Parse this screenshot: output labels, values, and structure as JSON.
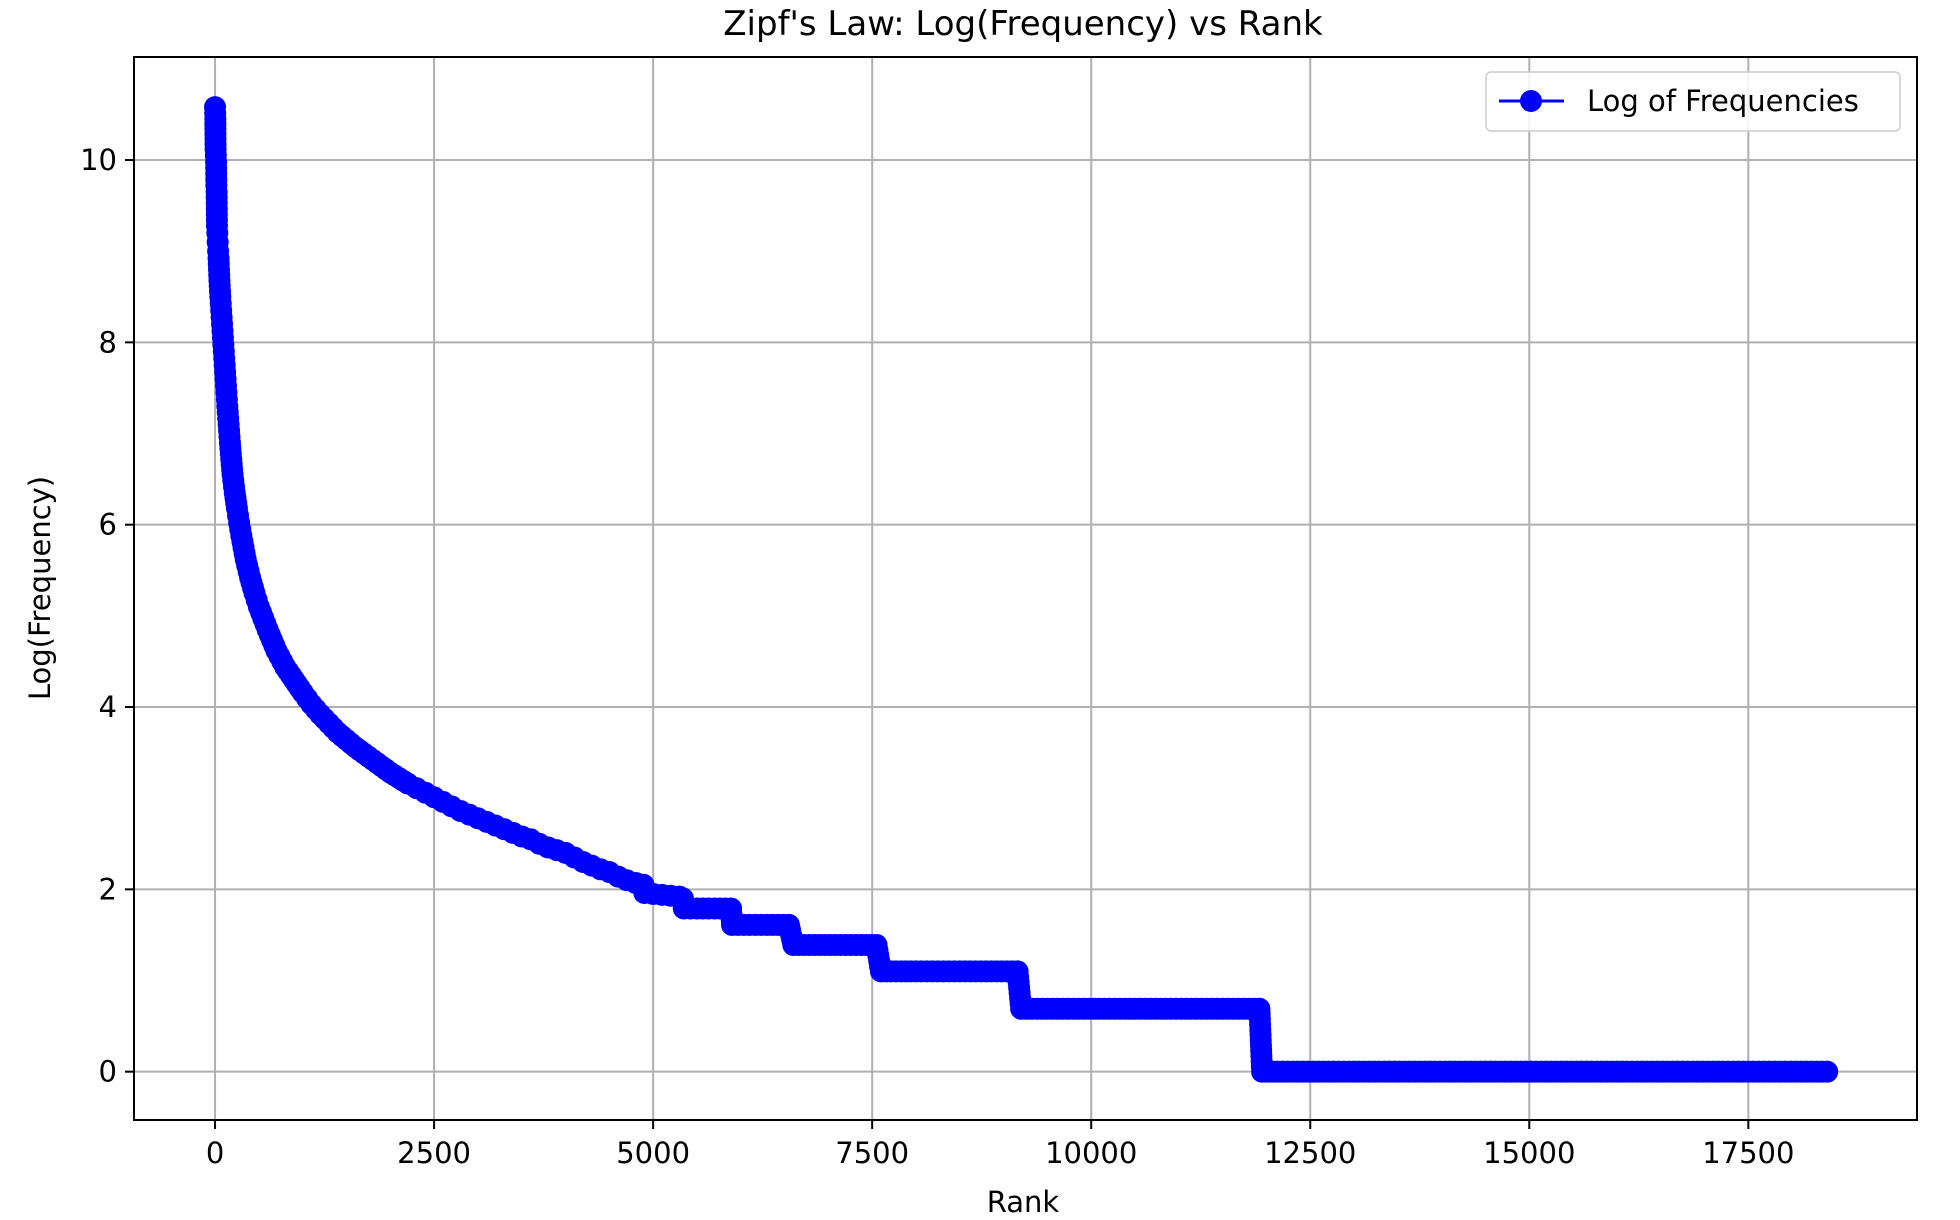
{
  "chart_data": {
    "type": "line",
    "title": "Zipf's Law: Log(Frequency) vs Rank",
    "xlabel": "Rank",
    "ylabel": "Log(Frequency)",
    "xlim": [
      -925,
      19425
    ],
    "ylim": [
      -0.53,
      11.13
    ],
    "x_ticks": [
      0,
      2500,
      5000,
      7500,
      10000,
      12500,
      15000,
      17500
    ],
    "y_ticks": [
      0,
      2,
      4,
      6,
      8,
      10
    ],
    "grid": true,
    "legend_position": "upper right",
    "series": [
      {
        "name": "Log of Frequencies",
        "color": "#0000ff",
        "marker": "circle",
        "points": [
          [
            0,
            10.58
          ],
          [
            3,
            10.45
          ],
          [
            6,
            10.12
          ],
          [
            9,
            10.05
          ],
          [
            12,
            9.98
          ],
          [
            15,
            9.72
          ],
          [
            18,
            9.65
          ],
          [
            22,
            9.28
          ],
          [
            26,
            9.2
          ],
          [
            30,
            9.1
          ],
          [
            35,
            9.0
          ],
          [
            40,
            8.92
          ],
          [
            45,
            8.8
          ],
          [
            50,
            8.68
          ],
          [
            60,
            8.5
          ],
          [
            70,
            8.35
          ],
          [
            80,
            8.2
          ],
          [
            90,
            8.05
          ],
          [
            100,
            7.9
          ],
          [
            110,
            7.75
          ],
          [
            120,
            7.6
          ],
          [
            130,
            7.45
          ],
          [
            140,
            7.3
          ],
          [
            155,
            7.1
          ],
          [
            170,
            6.9
          ],
          [
            185,
            6.72
          ],
          [
            200,
            6.55
          ],
          [
            225,
            6.35
          ],
          [
            250,
            6.18
          ],
          [
            275,
            6.02
          ],
          [
            300,
            5.88
          ],
          [
            350,
            5.62
          ],
          [
            400,
            5.42
          ],
          [
            450,
            5.25
          ],
          [
            500,
            5.1
          ],
          [
            600,
            4.85
          ],
          [
            700,
            4.62
          ],
          [
            800,
            4.44
          ],
          [
            900,
            4.3
          ],
          [
            1000,
            4.16
          ],
          [
            1100,
            4.03
          ],
          [
            1200,
            3.92
          ],
          [
            1300,
            3.82
          ],
          [
            1400,
            3.72
          ],
          [
            1500,
            3.64
          ],
          [
            1600,
            3.56
          ],
          [
            1700,
            3.49
          ],
          [
            1800,
            3.42
          ],
          [
            1900,
            3.35
          ],
          [
            2000,
            3.28
          ],
          [
            2100,
            3.22
          ],
          [
            2200,
            3.16
          ],
          [
            2300,
            3.11
          ],
          [
            2400,
            3.06
          ],
          [
            2500,
            3.01
          ],
          [
            2600,
            2.96
          ],
          [
            2700,
            2.91
          ],
          [
            2800,
            2.86
          ],
          [
            2900,
            2.82
          ],
          [
            3000,
            2.78
          ],
          [
            3100,
            2.74
          ],
          [
            3200,
            2.7
          ],
          [
            3300,
            2.66
          ],
          [
            3400,
            2.62
          ],
          [
            3500,
            2.58
          ],
          [
            3600,
            2.55
          ],
          [
            3700,
            2.5
          ],
          [
            3800,
            2.46
          ],
          [
            3900,
            2.43
          ],
          [
            4000,
            2.4
          ],
          [
            4100,
            2.35
          ],
          [
            4200,
            2.3
          ],
          [
            4300,
            2.26
          ],
          [
            4400,
            2.22
          ],
          [
            4500,
            2.19
          ],
          [
            4600,
            2.14
          ],
          [
            4700,
            2.1
          ],
          [
            4800,
            2.07
          ],
          [
            4890,
            2.05
          ],
          [
            4900,
            1.96
          ],
          [
            5000,
            1.95
          ],
          [
            5100,
            1.94
          ],
          [
            5200,
            1.93
          ],
          [
            5300,
            1.92
          ],
          [
            5340,
            1.9
          ],
          [
            5350,
            1.79
          ],
          [
            5500,
            1.79
          ],
          [
            5700,
            1.79
          ],
          [
            5890,
            1.79
          ],
          [
            5900,
            1.61
          ],
          [
            6100,
            1.61
          ],
          [
            6300,
            1.61
          ],
          [
            6550,
            1.61
          ],
          [
            6600,
            1.39
          ],
          [
            6900,
            1.39
          ],
          [
            7200,
            1.39
          ],
          [
            7550,
            1.39
          ],
          [
            7600,
            1.1
          ],
          [
            8000,
            1.1
          ],
          [
            8500,
            1.1
          ],
          [
            9160,
            1.1
          ],
          [
            9200,
            0.69
          ],
          [
            9800,
            0.69
          ],
          [
            10500,
            0.69
          ],
          [
            11200,
            0.69
          ],
          [
            11920,
            0.69
          ],
          [
            11950,
            0.0
          ],
          [
            13000,
            0.0
          ],
          [
            14500,
            0.0
          ],
          [
            16000,
            0.0
          ],
          [
            17500,
            0.0
          ],
          [
            18400,
            0.0
          ]
        ]
      }
    ]
  }
}
